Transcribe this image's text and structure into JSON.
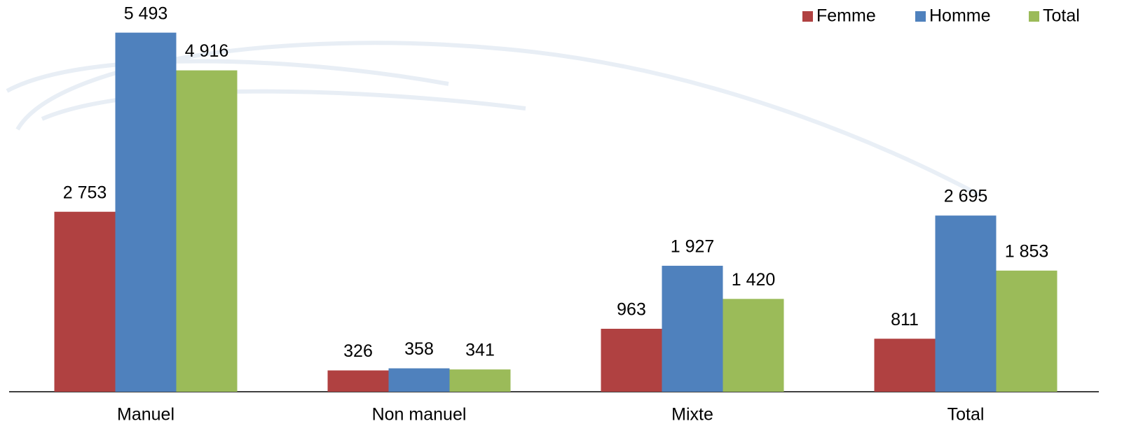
{
  "chart_data": {
    "type": "bar",
    "categories": [
      "Manuel",
      "Non manuel",
      "Mixte",
      "Total"
    ],
    "series": [
      {
        "name": "Femme",
        "color": "#b04141",
        "values": [
          2753,
          326,
          963,
          811
        ],
        "value_labels": [
          "2 753",
          "326",
          "963",
          "811"
        ]
      },
      {
        "name": "Homme",
        "color": "#4f81bd",
        "values": [
          5493,
          358,
          1927,
          2695
        ],
        "value_labels": [
          "5 493",
          "358",
          "1 927",
          "2 695"
        ]
      },
      {
        "name": "Total",
        "color": "#9bbb59",
        "values": [
          4916,
          341,
          1420,
          1853
        ],
        "value_labels": [
          "4 916",
          "341",
          "1 420",
          "1 853"
        ]
      }
    ],
    "ylim": [
      0,
      5500
    ],
    "legend": "top-right"
  }
}
